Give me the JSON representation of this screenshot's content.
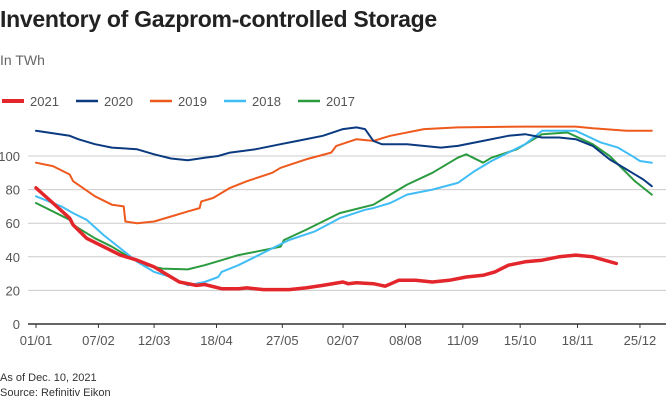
{
  "chart_data": {
    "type": "line",
    "title": "Inventory of Gazprom-controlled Storage",
    "subtitle": "In TWh",
    "xlabel": "",
    "ylabel": "",
    "ylim": [
      0,
      120
    ],
    "xlim_days": [
      0,
      365
    ],
    "yticks": [
      "0",
      "20",
      "40",
      "60",
      "80",
      "100"
    ],
    "ytick_values": [
      0,
      20,
      40,
      60,
      80,
      100
    ],
    "xticks": [
      "01/01",
      "07/02",
      "12/03",
      "18/04",
      "27/05",
      "02/07",
      "08/08",
      "11/09",
      "15/10",
      "18/11",
      "25/12"
    ],
    "xtick_days": [
      0,
      37,
      70,
      107,
      146,
      182,
      219,
      253,
      287,
      321,
      358
    ],
    "grid": true,
    "legend_position": "top-left",
    "series": [
      {
        "name": "2021",
        "color": "#e3262b",
        "width": 3.5,
        "x": [
          0,
          10,
          20,
          22,
          30,
          40,
          50,
          60,
          70,
          80,
          85,
          95,
          100,
          110,
          120,
          125,
          135,
          150,
          160,
          170,
          182,
          185,
          190,
          200,
          207,
          215,
          225,
          235,
          245,
          255,
          265,
          272,
          280,
          290,
          300,
          310,
          320,
          330,
          337,
          344
        ],
        "y": [
          81,
          72,
          63,
          59,
          51,
          46,
          41,
          38,
          34,
          28,
          25,
          23,
          23.5,
          21,
          21,
          21.5,
          20.5,
          20.5,
          21.5,
          23,
          25,
          24,
          24.5,
          24,
          22.5,
          26,
          26,
          25,
          26,
          28,
          29,
          31,
          35,
          37,
          38,
          40,
          41,
          40,
          38,
          36
        ]
      },
      {
        "name": "2020",
        "color": "#0b3a80",
        "width": 2,
        "x": [
          0,
          20,
          25,
          35,
          45,
          60,
          70,
          80,
          90,
          100,
          108,
          115,
          130,
          145,
          155,
          170,
          182,
          190,
          195,
          200,
          205,
          220,
          240,
          250,
          265,
          280,
          290,
          300,
          310,
          320,
          330,
          340,
          350,
          360,
          365
        ],
        "y": [
          115,
          112,
          110,
          107,
          105,
          104,
          101,
          98.5,
          97.5,
          99,
          100,
          102,
          104,
          107,
          109,
          112,
          116,
          117,
          116,
          109,
          107,
          107,
          105,
          106,
          109,
          112,
          113,
          111,
          111,
          110,
          106,
          98,
          92,
          86,
          82
        ]
      },
      {
        "name": "2019",
        "color": "#ee5a1e",
        "width": 2,
        "x": [
          0,
          10,
          20,
          22,
          35,
          45,
          52,
          53,
          60,
          70,
          80,
          90,
          97,
          98,
          105,
          115,
          125,
          140,
          145,
          160,
          175,
          178,
          190,
          200,
          210,
          230,
          250,
          290,
          320,
          330,
          350,
          365
        ],
        "y": [
          96,
          94,
          89,
          85,
          76,
          71,
          70,
          61,
          60,
          61,
          64,
          67,
          69,
          73,
          75,
          81,
          85,
          90,
          93,
          98,
          102,
          106,
          110,
          109,
          112,
          116,
          117,
          117.5,
          117.5,
          116.5,
          115,
          115
        ]
      },
      {
        "name": "2018",
        "color": "#41bdf5",
        "width": 2,
        "x": [
          0,
          15,
          22,
          30,
          40,
          50,
          60,
          70,
          80,
          90,
          100,
          108,
          110,
          120,
          130,
          140,
          150,
          165,
          180,
          195,
          200,
          210,
          220,
          235,
          250,
          260,
          270,
          290,
          300,
          320,
          335,
          345,
          355,
          358,
          365
        ],
        "y": [
          76,
          70,
          66,
          62,
          53,
          45,
          37,
          31,
          28,
          23,
          25,
          28,
          31,
          35,
          40,
          45,
          50,
          55,
          63,
          68,
          69,
          72,
          77,
          80,
          84,
          91,
          97,
          107,
          115,
          115,
          108,
          105,
          99,
          97,
          96
        ]
      },
      {
        "name": "2017",
        "color": "#2b9b3f",
        "width": 2,
        "x": [
          0,
          20,
          22,
          35,
          45,
          55,
          65,
          75,
          90,
          100,
          110,
          120,
          130,
          145,
          147,
          160,
          180,
          200,
          210,
          220,
          235,
          250,
          255,
          265,
          270,
          285,
          300,
          315,
          330,
          340,
          355,
          365
        ],
        "y": [
          72,
          62,
          59,
          51,
          46,
          40,
          35,
          33,
          32.5,
          35,
          38,
          41,
          43,
          46,
          50,
          56,
          66,
          71,
          77,
          83,
          90,
          99,
          101,
          96,
          99,
          104,
          113,
          114,
          107,
          100,
          85,
          77
        ]
      }
    ],
    "notes": [
      "As of Dec. 10, 2021",
      "Source: Refinitiv Eikon"
    ]
  }
}
